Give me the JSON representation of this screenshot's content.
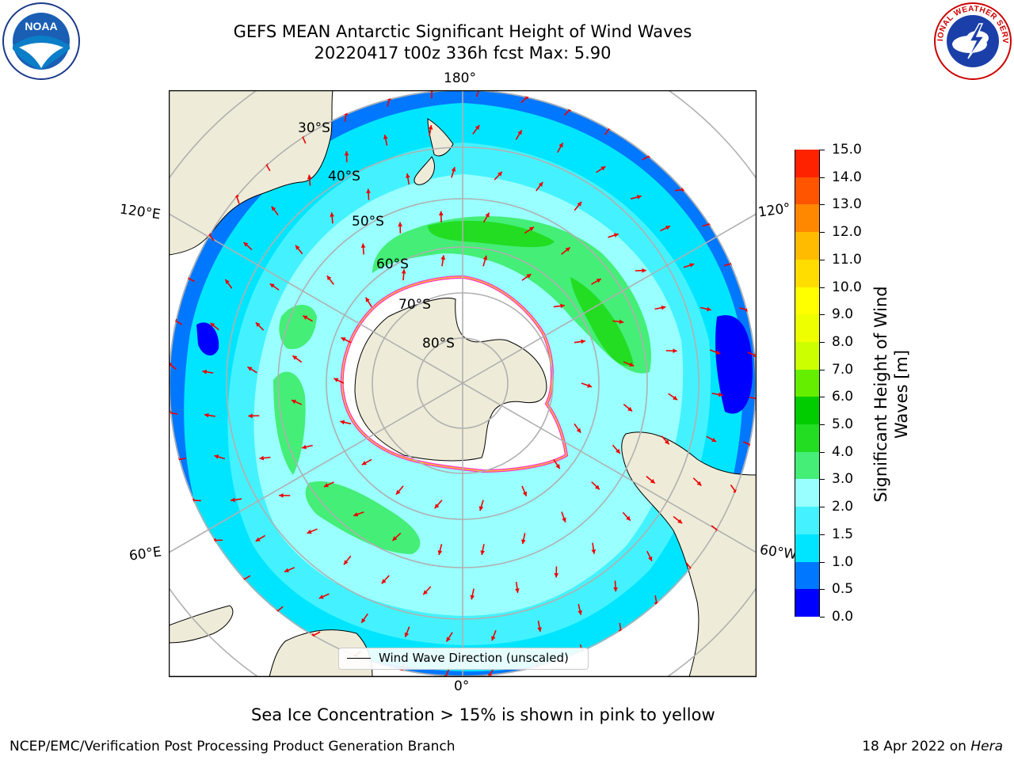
{
  "title": "GEFS MEAN Antarctic Significant Height of Wind Waves",
  "subtitle": "20220417 t00z 336h fcst   Max: 5.90",
  "lon_labels": {
    "top": "180°",
    "bottom": "0°",
    "upper_left": "120°E",
    "upper_right": "120°",
    "lower_left": "60°E",
    "lower_right": "60°W"
  },
  "lat_labels": [
    "30°S",
    "40°S",
    "50°S",
    "60°S",
    "70°S",
    "80°S"
  ],
  "legend_label": "Wind Wave Direction (unscaled)",
  "colorbar": {
    "label_line1": "Significant Height of Wind",
    "label_line2": "Waves [m]",
    "ticks": [
      "0.0",
      "0.5",
      "1.0",
      "1.5",
      "2.0",
      "3.0",
      "4.0",
      "5.0",
      "6.0",
      "7.0",
      "8.0",
      "9.0",
      "10.0",
      "11.0",
      "12.0",
      "13.0",
      "14.0",
      "15.0"
    ],
    "colors": [
      "#0000ff",
      "#0077ff",
      "#00e5ff",
      "#44f2ff",
      "#99ffff",
      "#44ee77",
      "#22dd22",
      "#00cc00",
      "#66ee00",
      "#ccff00",
      "#eeff00",
      "#ffff00",
      "#ffdd00",
      "#ffbb00",
      "#ff8800",
      "#ff5500",
      "#ff2200",
      "#ff0000"
    ]
  },
  "map_colors": {
    "land": "#eeecd8",
    "ice": "#ffffff",
    "ice_edge": "#ff44cc",
    "arrow": "#ee0000",
    "grid": "#b0b0b0"
  },
  "note": "Sea Ice Concentration > 15% is shown in pink to yellow",
  "footer_left": "NCEP/EMC/Verification Post Processing Product Generation Branch",
  "footer_right_date": "18 Apr 2022 on ",
  "footer_right_host": "Hera",
  "logos": {
    "noaa_text": "NOAA",
    "nws_text": "NATIONAL WEATHER SERVICE"
  }
}
